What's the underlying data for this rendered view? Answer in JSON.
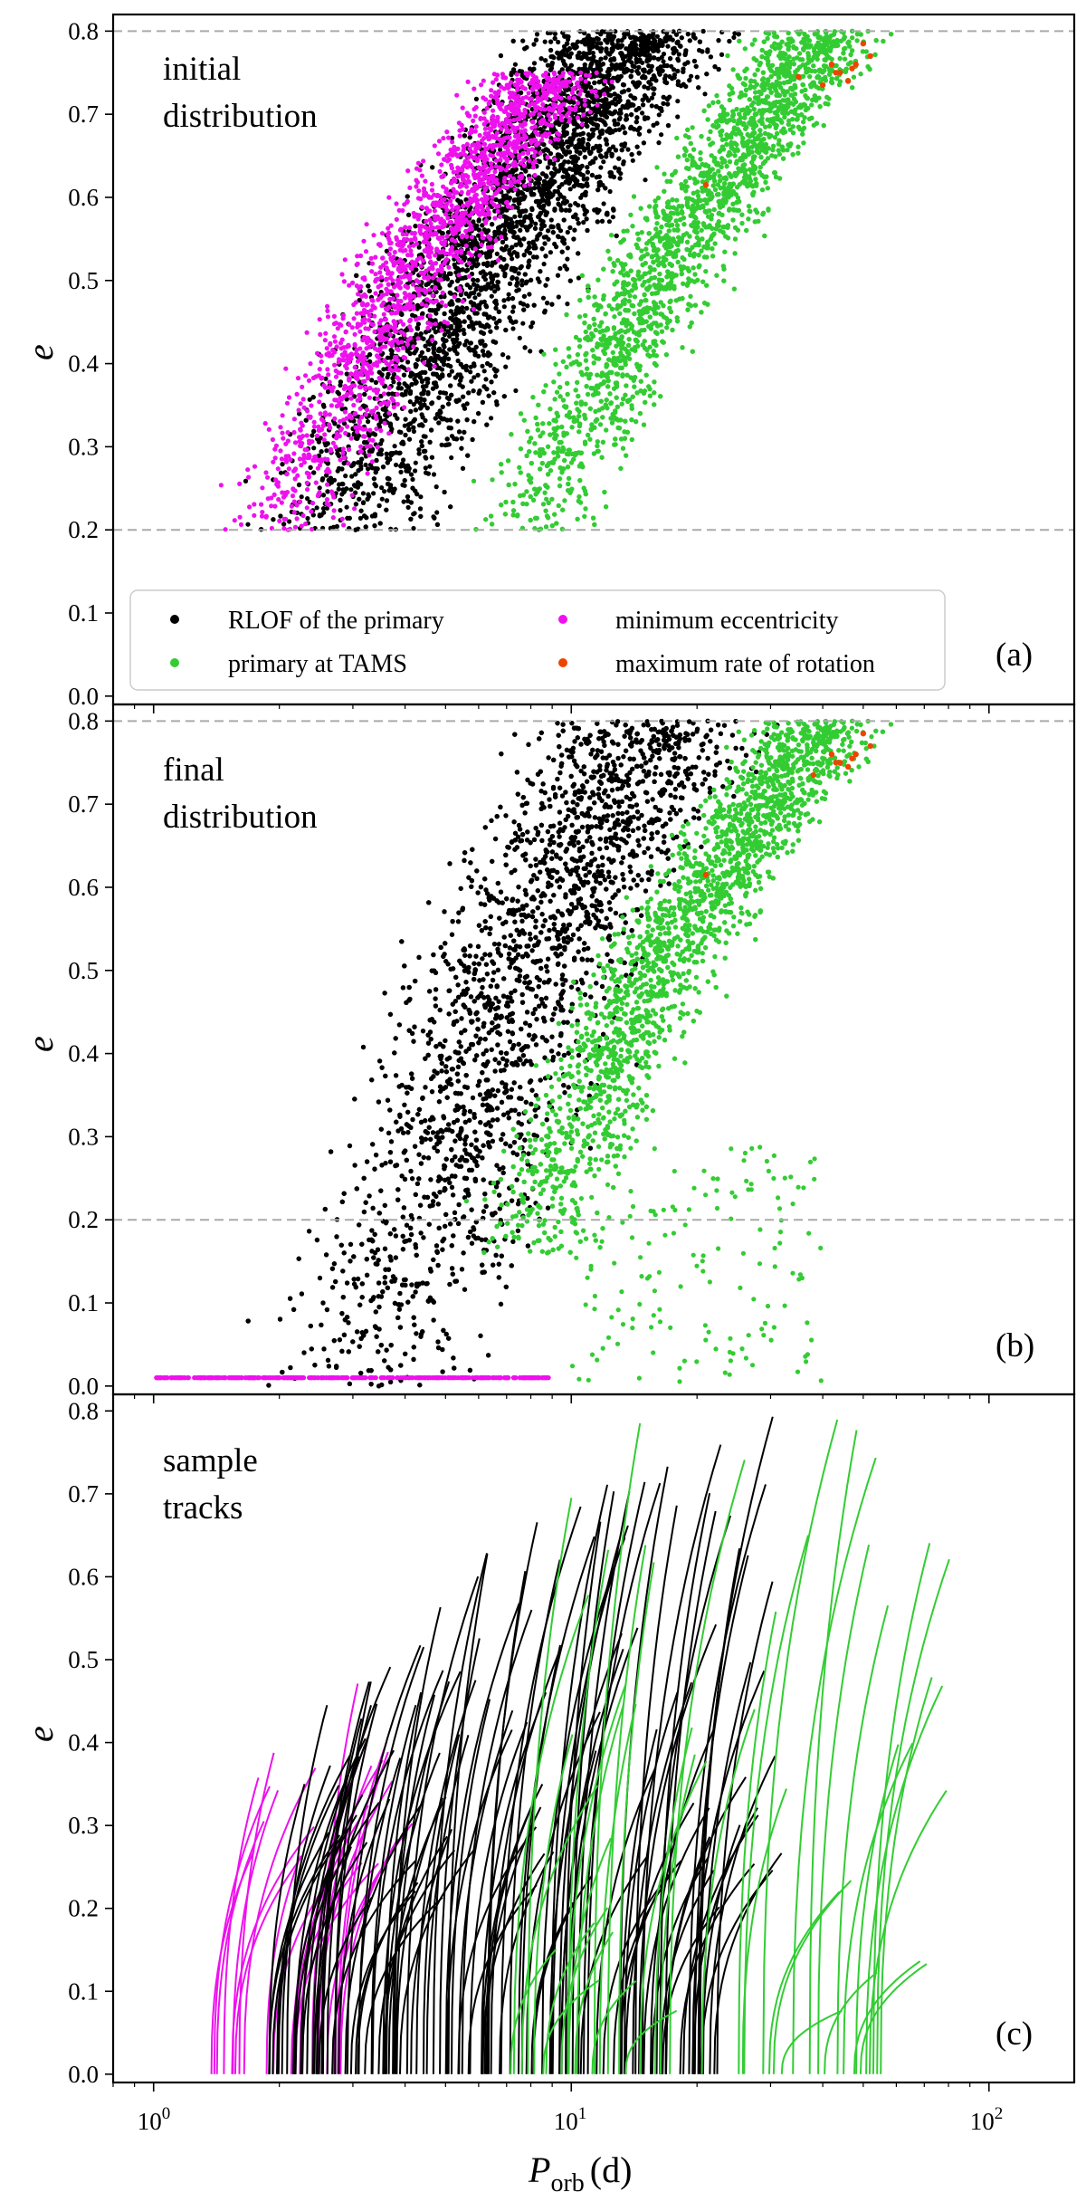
{
  "chart_data": {
    "type": "scatter",
    "figure_title": "",
    "x_axis": {
      "label_main": "P",
      "label_sub": "orb",
      "label_unit": "(d)",
      "scale": "log",
      "range": [
        0.8,
        160
      ],
      "ticks": [
        {
          "value": 1,
          "base": "10",
          "exp": "0"
        },
        {
          "value": 10,
          "base": "10",
          "exp": "1"
        },
        {
          "value": 100,
          "base": "10",
          "exp": "2"
        }
      ]
    },
    "y_axis": {
      "label": "e",
      "range": [
        -0.01,
        0.82
      ],
      "ticks": [
        "0.0",
        "0.1",
        "0.2",
        "0.3",
        "0.4",
        "0.5",
        "0.6",
        "0.7",
        "0.8"
      ]
    },
    "colors": {
      "rlof": "#000000",
      "tams": "#33cc33",
      "min_ecc": "#ee11ee",
      "max_rot": "#ee4400",
      "guide": "#aaaaaa"
    },
    "legend": {
      "placement": "lower-left of panel (a)",
      "entries": [
        {
          "label": "RLOF of the primary",
          "color": "#000000"
        },
        {
          "label": "primary at TAMS",
          "color": "#33cc33"
        },
        {
          "label": "minimum eccentricity",
          "color": "#ee11ee"
        },
        {
          "label": "maximum rate of rotation",
          "color": "#ee4400"
        }
      ]
    },
    "panels": [
      {
        "id": "a",
        "panel_label": "(a)",
        "annotation": [
          "initial",
          "distribution"
        ],
        "kind": "scatter",
        "guide_lines_y": [
          0.2,
          0.8
        ],
        "series": [
          {
            "name": "RLOF of the primary",
            "color_key": "rlof",
            "count": 5200,
            "e_range": [
              0.2,
              0.8
            ],
            "logP_center_at_e": [
              [
                0.2,
                0.45
              ],
              [
                0.5,
                0.75
              ],
              [
                0.8,
                1.15
              ]
            ],
            "logP_halfwidth": 0.3
          },
          {
            "name": "minimum eccentricity",
            "color_key": "min_ecc",
            "count": 1800,
            "e_range": [
              0.2,
              0.75
            ],
            "logP_center_at_e": [
              [
                0.2,
                0.3
              ],
              [
                0.5,
                0.6
              ],
              [
                0.75,
                0.95
              ]
            ],
            "logP_halfwidth": 0.2
          },
          {
            "name": "primary at TAMS",
            "color_key": "tams",
            "count": 5200,
            "e_range": [
              0.2,
              0.8
            ],
            "logP_center_at_e": [
              [
                0.2,
                0.9
              ],
              [
                0.5,
                1.2
              ],
              [
                0.8,
                1.6
              ]
            ],
            "logP_halfwidth": 0.2
          },
          {
            "name": "maximum rate of rotation",
            "color_key": "max_rot",
            "points": [
              [
                44,
                0.75
              ],
              [
                46,
                0.74
              ],
              [
                42,
                0.76
              ],
              [
                48,
                0.76
              ],
              [
                50,
                0.785
              ],
              [
                43,
                0.75
              ],
              [
                47,
                0.755
              ],
              [
                52,
                0.77
              ],
              [
                21,
                0.615
              ],
              [
                35,
                0.745
              ],
              [
                40,
                0.735
              ]
            ]
          }
        ]
      },
      {
        "id": "b",
        "panel_label": "(b)",
        "annotation": [
          "final",
          "distribution"
        ],
        "kind": "scatter",
        "guide_lines_y": [
          0.2,
          0.8
        ],
        "series": [
          {
            "name": "RLOF of the primary",
            "color_key": "rlof",
            "count": 6500,
            "e_range": [
              0.0,
              0.8
            ],
            "logP_center_at_e": [
              [
                0.0,
                0.5
              ],
              [
                0.1,
                0.58
              ],
              [
                0.3,
                0.75
              ],
              [
                0.5,
                0.88
              ],
              [
                0.8,
                1.2
              ]
            ],
            "logP_halfwidth": 0.35
          },
          {
            "name": "minimum eccentricity",
            "color_key": "min_ecc",
            "e_fixed": 0.01,
            "logP_range": [
              0.0,
              0.95
            ],
            "count": 400
          },
          {
            "name": "primary at TAMS",
            "color_key": "tams",
            "count": 5200,
            "e_range": [
              0.16,
              0.8
            ],
            "logP_center_at_e": [
              [
                0.2,
                0.92
              ],
              [
                0.5,
                1.2
              ],
              [
                0.8,
                1.6
              ]
            ],
            "logP_halfwidth": 0.2
          },
          {
            "name": "primary at TAMS (low e)",
            "color_key": "tams",
            "count": 160,
            "e_range": [
              0.0,
              0.29
            ],
            "logP_range": [
              1.0,
              1.6
            ]
          },
          {
            "name": "maximum rate of rotation",
            "color_key": "max_rot",
            "points": [
              [
                44,
                0.75
              ],
              [
                46,
                0.745
              ],
              [
                42,
                0.76
              ],
              [
                48,
                0.76
              ],
              [
                50,
                0.785
              ],
              [
                43,
                0.75
              ],
              [
                47,
                0.755
              ],
              [
                52,
                0.77
              ],
              [
                21,
                0.615
              ],
              [
                38,
                0.735
              ]
            ]
          }
        ]
      },
      {
        "id": "c",
        "panel_label": "(c)",
        "annotation": [
          "sample",
          "tracks"
        ],
        "kind": "tracks",
        "series": [
          {
            "name": "minimum eccentricity tracks",
            "color_key": "min_ecc",
            "count": 26,
            "logP_start_range": [
              0.1,
              0.45
            ],
            "e_top_range": [
              0.25,
              0.57
            ]
          },
          {
            "name": "RLOF of the primary tracks",
            "color_key": "rlof",
            "count": 130,
            "logP_start_range": [
              0.25,
              1.35
            ],
            "e_top_range": [
              0.2,
              0.8
            ]
          },
          {
            "name": "primary at TAMS tracks",
            "color_key": "tams",
            "count": 45,
            "logP_start_range": [
              0.85,
              1.75
            ],
            "e_top_range": [
              0.05,
              0.8
            ]
          }
        ]
      }
    ]
  }
}
